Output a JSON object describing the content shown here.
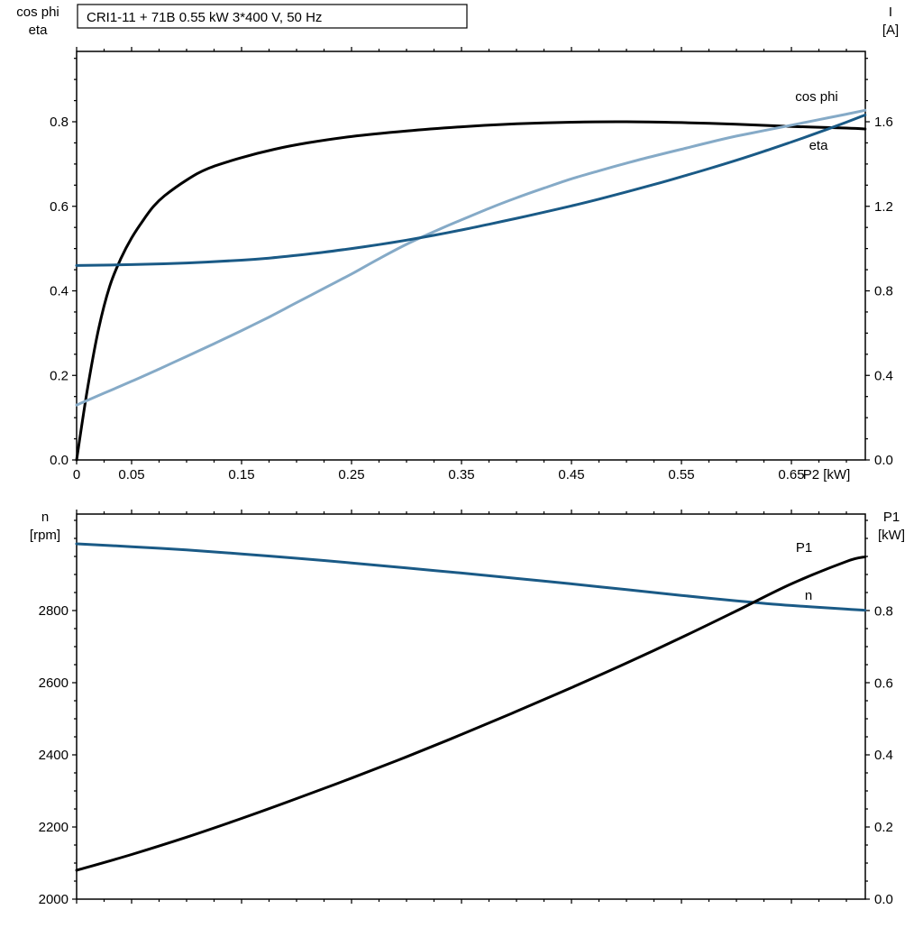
{
  "page": {
    "background": "#ffffff"
  },
  "colors": {
    "black": "#000000",
    "dark_blue": "#1a5a86",
    "light_blue": "#85aac7"
  },
  "chart_data": [
    {
      "type": "line",
      "name": "upper-chart",
      "title": "CRI1-11 + 71B   0.55 kW   3*400 V, 50 Hz",
      "corner_labels": {
        "left": [
          "cos phi",
          "eta"
        ],
        "right": [
          "I",
          "[A]"
        ]
      },
      "x_axis": {
        "label": "P2 [kW]",
        "range": [
          0,
          0.7172
        ],
        "majors": [
          0,
          0.05,
          0.15,
          0.25,
          0.35,
          0.45,
          0.55,
          0.65
        ],
        "labels": [
          "0",
          "0.05",
          "0.15",
          "0.25",
          "0.35",
          "0.45",
          "0.55",
          "0.65"
        ],
        "minor_step": 0.025,
        "show_labels": true
      },
      "left_axis": {
        "range": [
          0,
          0.9664
        ],
        "majors": [
          0,
          0.2,
          0.4,
          0.6,
          0.8
        ],
        "labels": [
          "0.0",
          "0.2",
          "0.4",
          "0.6",
          "0.8"
        ],
        "minor_step": 0.05
      },
      "right_axis": {
        "range": [
          0,
          1.9328
        ],
        "majors": [
          0,
          0.4,
          0.8,
          1.2,
          1.6
        ],
        "labels": [
          "0.0",
          "0.4",
          "0.8",
          "1.2",
          "1.6"
        ],
        "minor_step": 0.1
      },
      "series": [
        {
          "name": "eta",
          "axis": "left",
          "color": "black",
          "points": [
            [
              0,
              0
            ],
            [
              0.01,
              0.17
            ],
            [
              0.02,
              0.31
            ],
            [
              0.03,
              0.41
            ],
            [
              0.04,
              0.475
            ],
            [
              0.05,
              0.525
            ],
            [
              0.06,
              0.565
            ],
            [
              0.07,
              0.6
            ],
            [
              0.08,
              0.625
            ],
            [
              0.1,
              0.662
            ],
            [
              0.12,
              0.69
            ],
            [
              0.15,
              0.715
            ],
            [
              0.18,
              0.735
            ],
            [
              0.21,
              0.75
            ],
            [
              0.25,
              0.765
            ],
            [
              0.3,
              0.778
            ],
            [
              0.35,
              0.788
            ],
            [
              0.4,
              0.795
            ],
            [
              0.45,
              0.799
            ],
            [
              0.5,
              0.8
            ],
            [
              0.55,
              0.798
            ],
            [
              0.6,
              0.794
            ],
            [
              0.65,
              0.789
            ],
            [
              0.7,
              0.785
            ],
            [
              0.717,
              0.783
            ]
          ]
        },
        {
          "name": "cos phi",
          "axis": "left",
          "color": "light_blue",
          "points": [
            [
              0,
              0.13
            ],
            [
              0.025,
              0.158
            ],
            [
              0.05,
              0.186
            ],
            [
              0.075,
              0.215
            ],
            [
              0.1,
              0.245
            ],
            [
              0.125,
              0.275
            ],
            [
              0.15,
              0.306
            ],
            [
              0.175,
              0.338
            ],
            [
              0.2,
              0.372
            ],
            [
              0.225,
              0.406
            ],
            [
              0.25,
              0.44
            ],
            [
              0.275,
              0.476
            ],
            [
              0.3,
              0.51
            ],
            [
              0.325,
              0.54
            ],
            [
              0.35,
              0.568
            ],
            [
              0.375,
              0.595
            ],
            [
              0.4,
              0.62
            ],
            [
              0.425,
              0.643
            ],
            [
              0.45,
              0.665
            ],
            [
              0.475,
              0.684
            ],
            [
              0.5,
              0.702
            ],
            [
              0.525,
              0.719
            ],
            [
              0.55,
              0.735
            ],
            [
              0.575,
              0.751
            ],
            [
              0.6,
              0.766
            ],
            [
              0.625,
              0.779
            ],
            [
              0.65,
              0.792
            ],
            [
              0.675,
              0.805
            ],
            [
              0.7,
              0.818
            ],
            [
              0.717,
              0.827
            ]
          ]
        },
        {
          "name": "I",
          "axis": "right",
          "color": "dark_blue",
          "points": [
            [
              0,
              0.92
            ],
            [
              0.05,
              0.924
            ],
            [
              0.1,
              0.932
            ],
            [
              0.15,
              0.945
            ],
            [
              0.175,
              0.955
            ],
            [
              0.2,
              0.968
            ],
            [
              0.225,
              0.983
            ],
            [
              0.25,
              1.0
            ],
            [
              0.275,
              1.019
            ],
            [
              0.3,
              1.04
            ],
            [
              0.325,
              1.063
            ],
            [
              0.35,
              1.088
            ],
            [
              0.375,
              1.115
            ],
            [
              0.4,
              1.143
            ],
            [
              0.425,
              1.172
            ],
            [
              0.45,
              1.202
            ],
            [
              0.475,
              1.234
            ],
            [
              0.5,
              1.268
            ],
            [
              0.525,
              1.303
            ],
            [
              0.55,
              1.34
            ],
            [
              0.575,
              1.378
            ],
            [
              0.6,
              1.418
            ],
            [
              0.625,
              1.46
            ],
            [
              0.65,
              1.504
            ],
            [
              0.675,
              1.55
            ],
            [
              0.7,
              1.598
            ],
            [
              0.717,
              1.632
            ]
          ]
        }
      ],
      "annotations": [
        {
          "text": "cos phi",
          "x": 906,
          "y": 112,
          "color": "light_blue"
        },
        {
          "text": "eta",
          "x": 908,
          "y": 166,
          "color": "black"
        }
      ]
    },
    {
      "type": "line",
      "name": "lower-chart",
      "corner_labels": {
        "left": [
          "n",
          "[rpm]"
        ],
        "right": [
          "P1",
          "[kW]"
        ]
      },
      "x_axis": {
        "range": [
          0,
          0.7172
        ],
        "majors": [
          0,
          0.05,
          0.15,
          0.25,
          0.35,
          0.45,
          0.55,
          0.65
        ],
        "labels": [
          "",
          "",
          "",
          "",
          "",
          "",
          "",
          ""
        ],
        "minor_step": 0.025,
        "show_labels": false
      },
      "left_axis": {
        "range": [
          2000,
          3067.5
        ],
        "majors": [
          2000,
          2200,
          2400,
          2600,
          2800
        ],
        "labels": [
          "2000",
          "2200",
          "2400",
          "2600",
          "2800"
        ],
        "minor_step": 50
      },
      "right_axis": {
        "range": [
          0,
          1.06875
        ],
        "majors": [
          0,
          0.2,
          0.4,
          0.6,
          0.8
        ],
        "labels": [
          "0.0",
          "0.2",
          "0.4",
          "0.6",
          "0.8"
        ],
        "minor_step": 0.05
      },
      "series": [
        {
          "name": "n",
          "axis": "left",
          "color": "dark_blue",
          "points": [
            [
              0,
              2985
            ],
            [
              0.05,
              2977
            ],
            [
              0.1,
              2968
            ],
            [
              0.15,
              2957
            ],
            [
              0.2,
              2945
            ],
            [
              0.25,
              2932
            ],
            [
              0.3,
              2918
            ],
            [
              0.35,
              2904
            ],
            [
              0.4,
              2889
            ],
            [
              0.45,
              2874
            ],
            [
              0.5,
              2858
            ],
            [
              0.55,
              2842
            ],
            [
              0.6,
              2827
            ],
            [
              0.65,
              2814
            ],
            [
              0.7,
              2804
            ],
            [
              0.717,
              2801
            ]
          ]
        },
        {
          "name": "P1",
          "axis": "right",
          "color": "black",
          "points": [
            [
              0,
              0.08
            ],
            [
              0.05,
              0.124
            ],
            [
              0.1,
              0.172
            ],
            [
              0.15,
              0.224
            ],
            [
              0.2,
              0.279
            ],
            [
              0.25,
              0.336
            ],
            [
              0.3,
              0.395
            ],
            [
              0.35,
              0.457
            ],
            [
              0.4,
              0.521
            ],
            [
              0.45,
              0.587
            ],
            [
              0.5,
              0.655
            ],
            [
              0.55,
              0.726
            ],
            [
              0.6,
              0.8
            ],
            [
              0.65,
              0.875
            ],
            [
              0.7,
              0.937
            ],
            [
              0.717,
              0.95
            ]
          ]
        }
      ],
      "annotations": [
        {
          "text": "P1",
          "x": 892,
          "y": 612,
          "color": "black"
        },
        {
          "text": "n",
          "x": 897,
          "y": 665,
          "color": "dark_blue"
        }
      ]
    }
  ]
}
